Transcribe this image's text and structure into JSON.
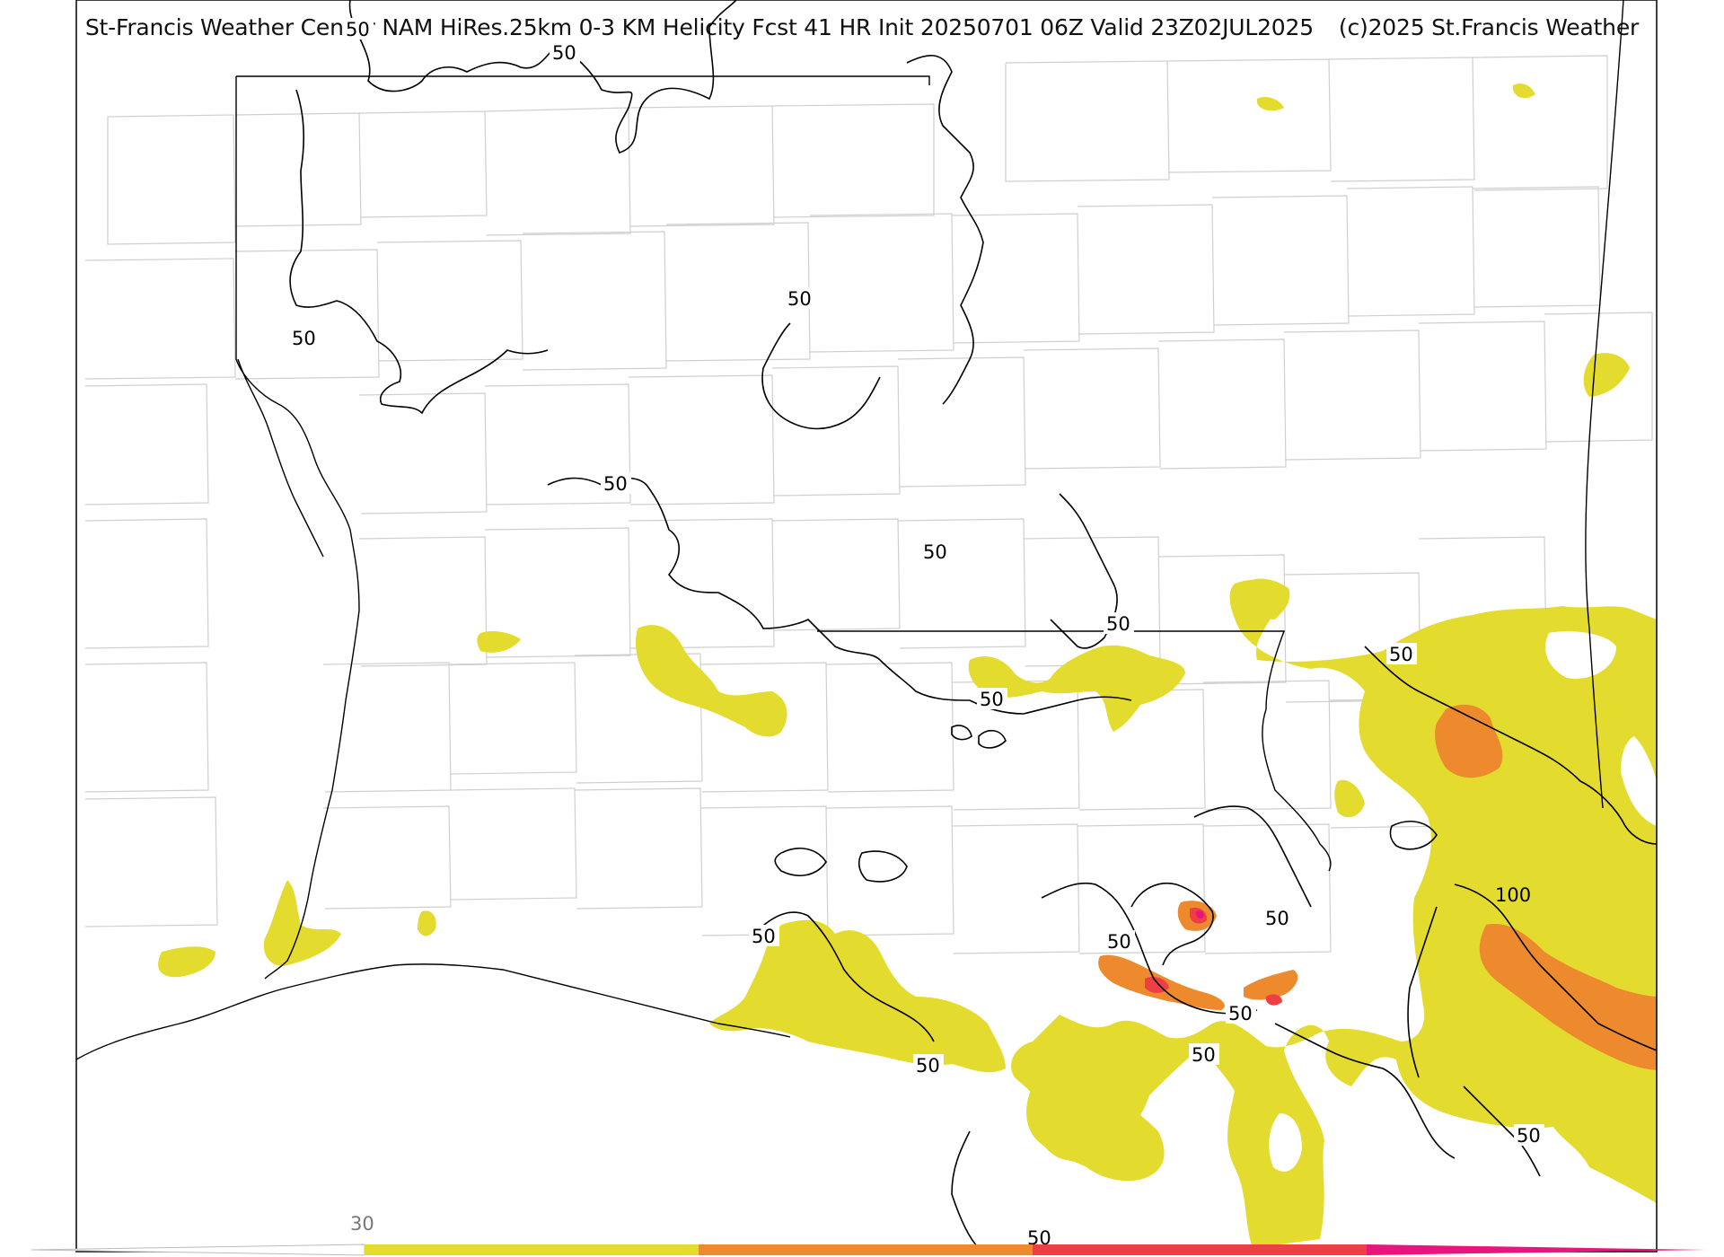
{
  "header": {
    "title": "St-Francis Weather Center NAM HiRes.25km 0-3 KM Helicity Fcst 41 HR Init 20250701 06Z  Valid 23Z02JUL2025",
    "copyright": "(c)2025 St.Francis Weather"
  },
  "contour_labels": {
    "c1": "50",
    "c2": "50",
    "c3": "50",
    "c4": "50",
    "c5": "50",
    "c6": "50",
    "c7": "50",
    "c8": "50",
    "c9": "50",
    "c10": "50",
    "c11": "50",
    "c12": "50",
    "c13": "50",
    "c14": "50",
    "c15": "50",
    "c16": "100",
    "c17": "50",
    "c18": "50"
  },
  "colorbar": {
    "min_label": "30",
    "colors": [
      "#e3db2e",
      "#ee8a2e",
      "#ee3f44",
      "#e8157f"
    ]
  },
  "colors": {
    "low": "#e3db2e",
    "mid": "#ee8a2e",
    "high": "#ee3f44",
    "extreme": "#e8157f",
    "contour": "#000000",
    "county_border": "#c8c8c8",
    "state_border": "#000000"
  }
}
